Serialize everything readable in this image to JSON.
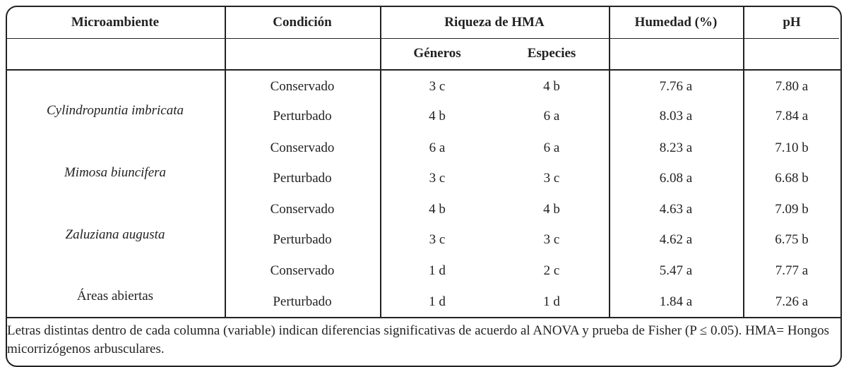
{
  "header": {
    "columns": [
      "Microambiente",
      "Condición",
      "Riqueza de HMA",
      "Humedad (%)",
      "pH"
    ],
    "subcolumns": [
      "Géneros",
      "Especies"
    ]
  },
  "table": {
    "groups": [
      {
        "microambiente": "Cylindropuntia imbricata",
        "rows": [
          [
            "Conservado",
            "3 c",
            "4 b",
            "7.76 a",
            "7.80 a"
          ],
          [
            "Perturbado",
            "4 b",
            "6 a",
            "8.03 a",
            "7.84 a"
          ]
        ]
      },
      {
        "microambiente": "Mimosa biuncifera",
        "rows": [
          [
            "Conservado",
            "6 a",
            "6 a",
            "8.23 a",
            "7.10 b"
          ],
          [
            "Perturbado",
            "3 c",
            "3 c",
            "6.08 a",
            "6.68 b"
          ]
        ]
      },
      {
        "microambiente": "Zaluziana augusta",
        "rows": [
          [
            "Conservado",
            "4 b",
            "4 b",
            "4.63 a",
            "7.09 b"
          ],
          [
            "Perturbado",
            "3 c",
            "3 c",
            "4.62 a",
            "6.75 b"
          ]
        ]
      },
      {
        "microambiente": "Áreas abiertas",
        "rows": [
          [
            "Conservado",
            "1 d",
            "2 c",
            "5.47 a",
            "7.77 a"
          ],
          [
            "Perturbado",
            "1 d",
            "1 d",
            "1.84 a",
            "7.26 a"
          ]
        ]
      }
    ]
  },
  "footnote": "Letras distintas dentro de cada columna (variable) indican diferencias significativas de acuerdo al ANOVA y prueba de Fisher (P ≤ 0.05). HMA= Hongos micorrizógenos arbusculares."
}
